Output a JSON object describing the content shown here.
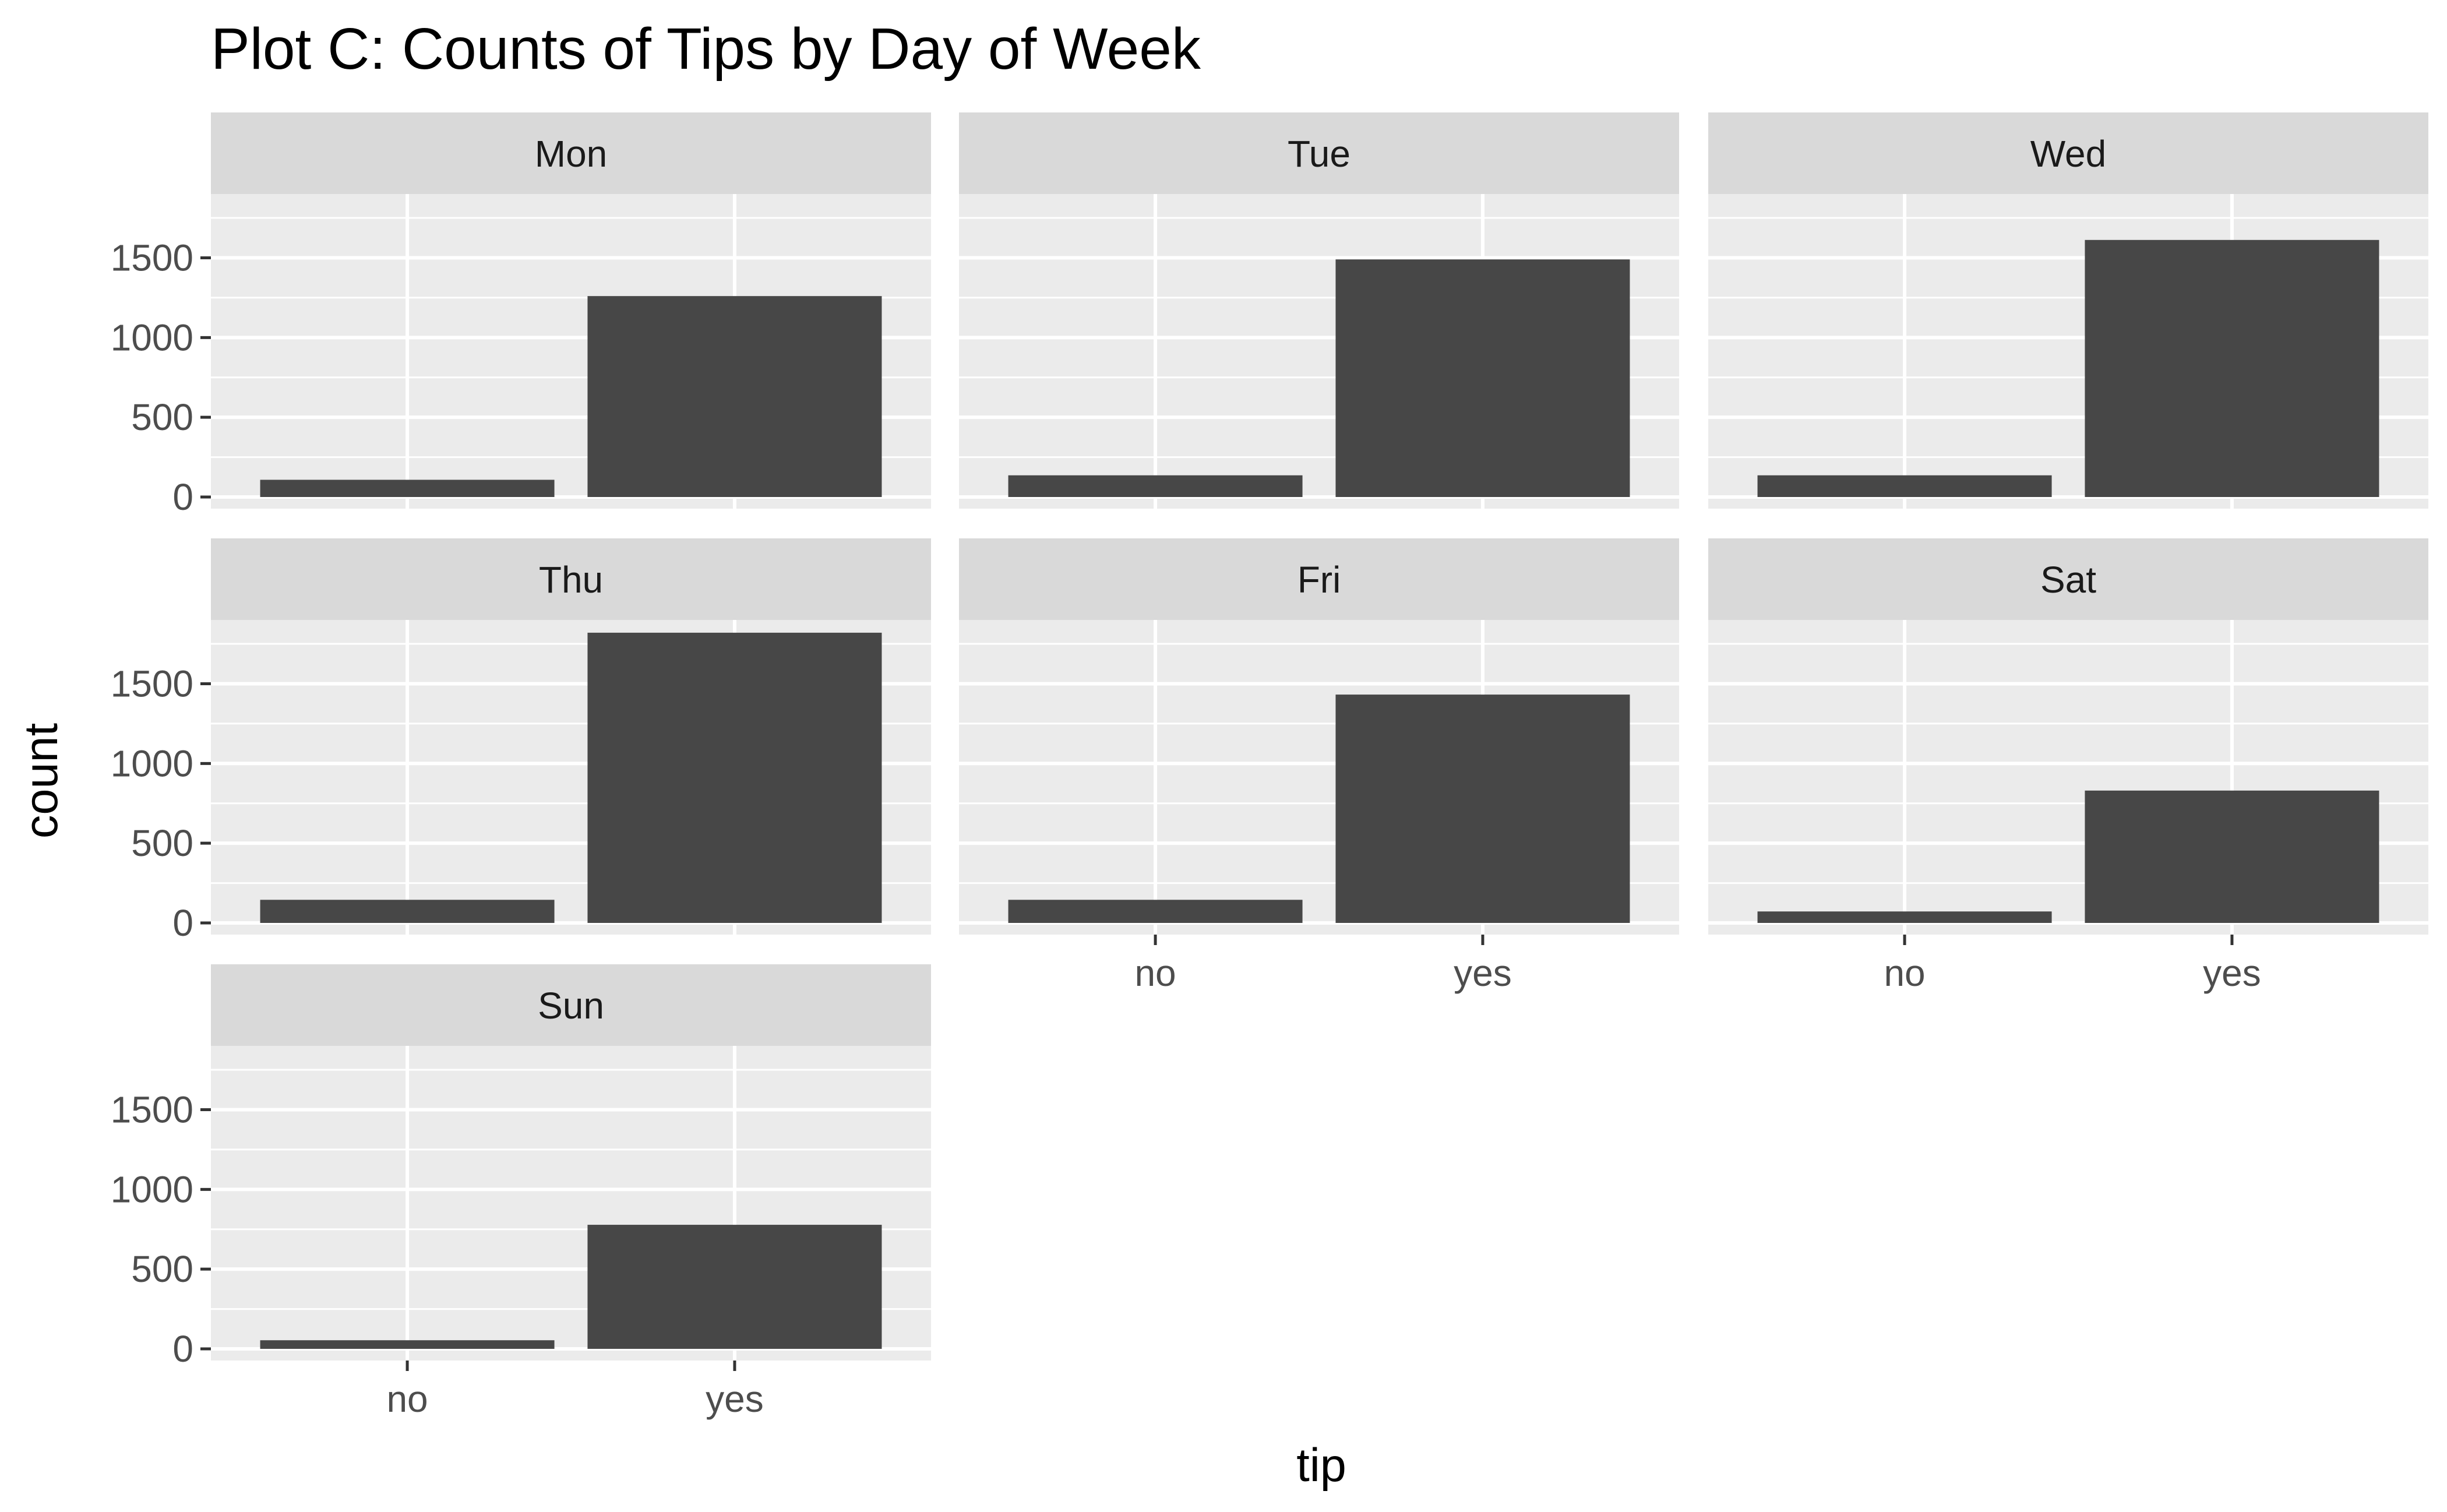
{
  "chart_data": {
    "type": "bar",
    "title": "Plot C: Counts of Tips by Day of Week",
    "xlabel": "tip",
    "ylabel": "count",
    "categories": [
      "no",
      "yes"
    ],
    "y_ticks": [
      "0",
      "500",
      "1000",
      "1500"
    ],
    "ylim": [
      0,
      1900
    ],
    "grid": true,
    "colors": {
      "bar": "#474747",
      "panel": "#ebebeb",
      "strip": "#d9d9d9",
      "grid": "#ffffff"
    },
    "facets": [
      {
        "label": "Mon",
        "values": [
          108,
          1260
        ]
      },
      {
        "label": "Tue",
        "values": [
          136,
          1490
        ]
      },
      {
        "label": "Wed",
        "values": [
          136,
          1612
        ]
      },
      {
        "label": "Thu",
        "values": [
          145,
          1820
        ]
      },
      {
        "label": "Fri",
        "values": [
          145,
          1432
        ]
      },
      {
        "label": "Sat",
        "values": [
          72,
          830
        ]
      },
      {
        "label": "Sun",
        "values": [
          54,
          778
        ]
      }
    ]
  }
}
